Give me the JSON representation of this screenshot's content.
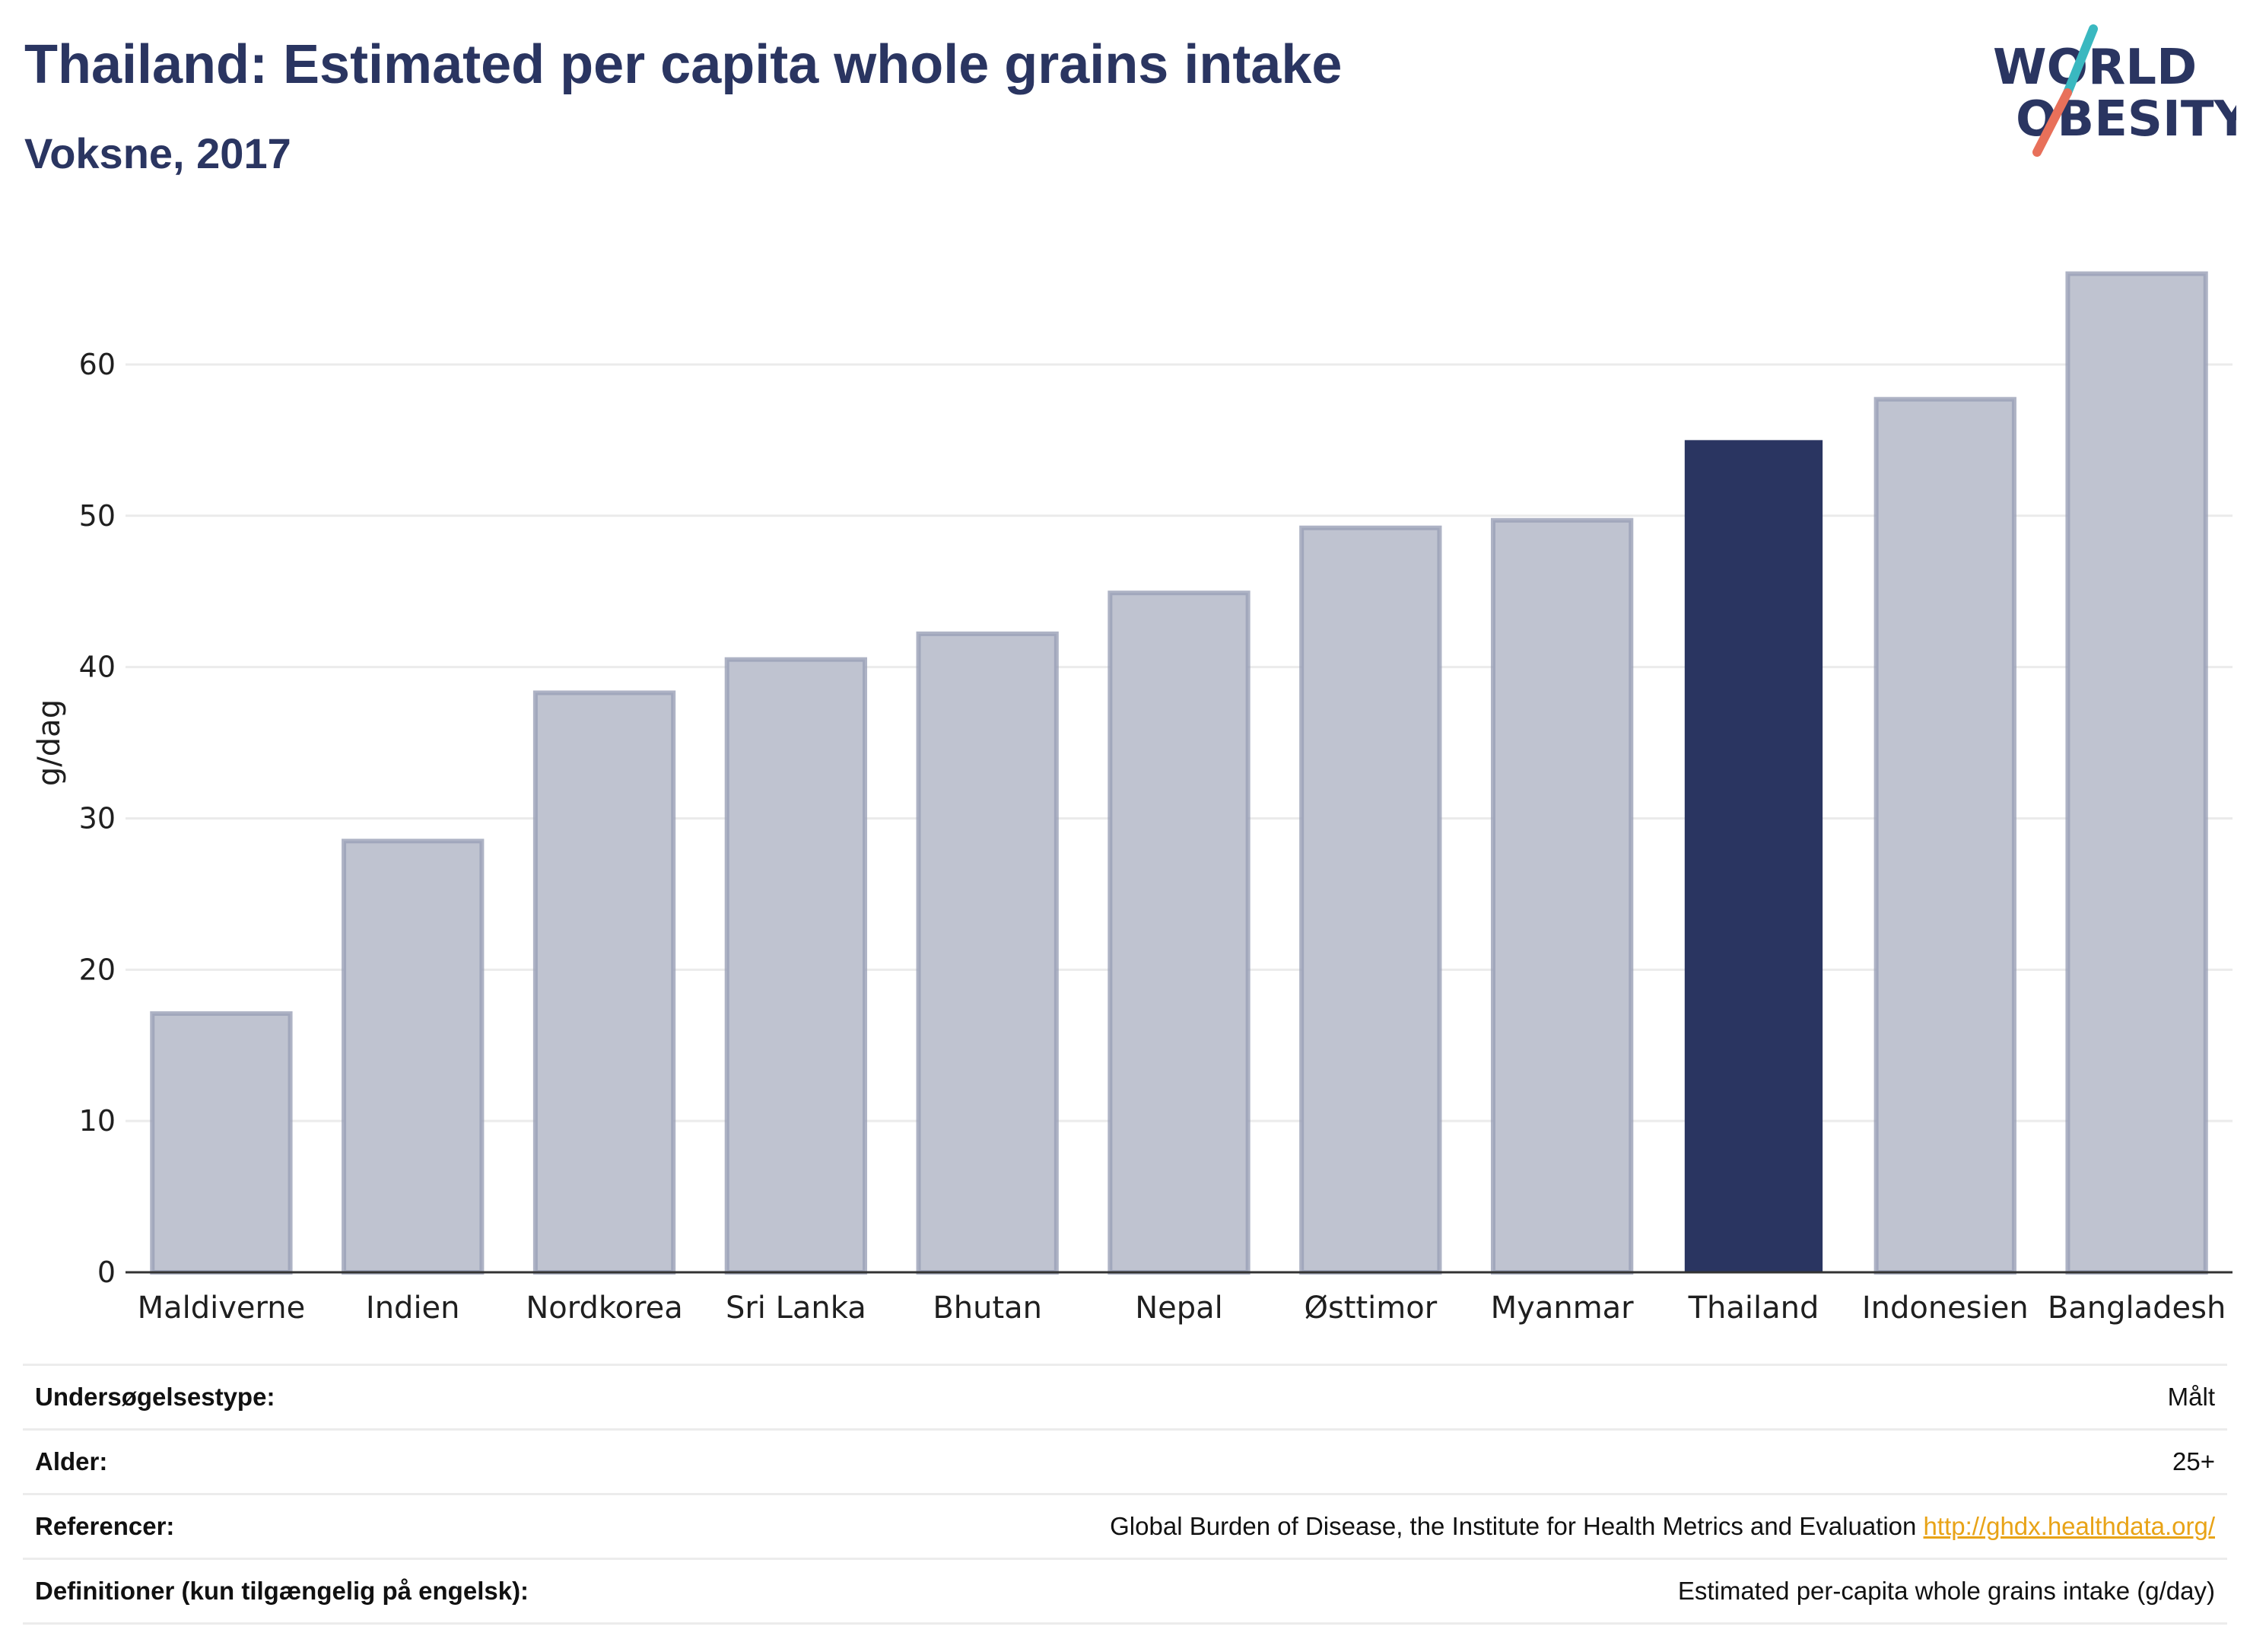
{
  "header": {
    "title": "Thailand: Estimated per capita whole grains intake",
    "subtitle": "Voksne, 2017"
  },
  "logo": {
    "line1": "WORLD",
    "line2": "OBESITY",
    "accent_colors": [
      "#3ab8c0",
      "#e8705a"
    ]
  },
  "colors": {
    "bar": "#bfc3d0",
    "bar_border": "#9aa0b6",
    "highlight": "#2a3561",
    "grid": "#ebebeb",
    "axis": "#333333"
  },
  "chart_data": {
    "type": "bar",
    "categories": [
      "Maldiverne",
      "Indien",
      "Nordkorea",
      "Sri Lanka",
      "Bhutan",
      "Nepal",
      "Østtimor",
      "Myanmar",
      "Thailand",
      "Indonesien",
      "Bangladesh"
    ],
    "values": [
      17.1,
      28.5,
      38.3,
      40.5,
      42.2,
      44.9,
      49.2,
      49.7,
      55.0,
      57.7,
      66.0
    ],
    "highlight": "Thailand",
    "ylabel": "g/dag",
    "yticks": [
      0,
      10,
      20,
      30,
      40,
      50,
      60
    ],
    "ylim": [
      0,
      69
    ],
    "grid": true
  },
  "meta": [
    {
      "label": "Undersøgelsestype:",
      "value": "Målt",
      "link": ""
    },
    {
      "label": "Alder:",
      "value": "25+",
      "link": ""
    },
    {
      "label": "Referencer:",
      "value": "Global Burden of Disease, the Institute for Health Metrics and Evaluation ",
      "link": "http://ghdx.healthdata.org/"
    },
    {
      "label": "Definitioner (kun tilgængelig på engelsk):",
      "value": "Estimated per-capita whole grains intake (g/day)",
      "link": ""
    }
  ]
}
